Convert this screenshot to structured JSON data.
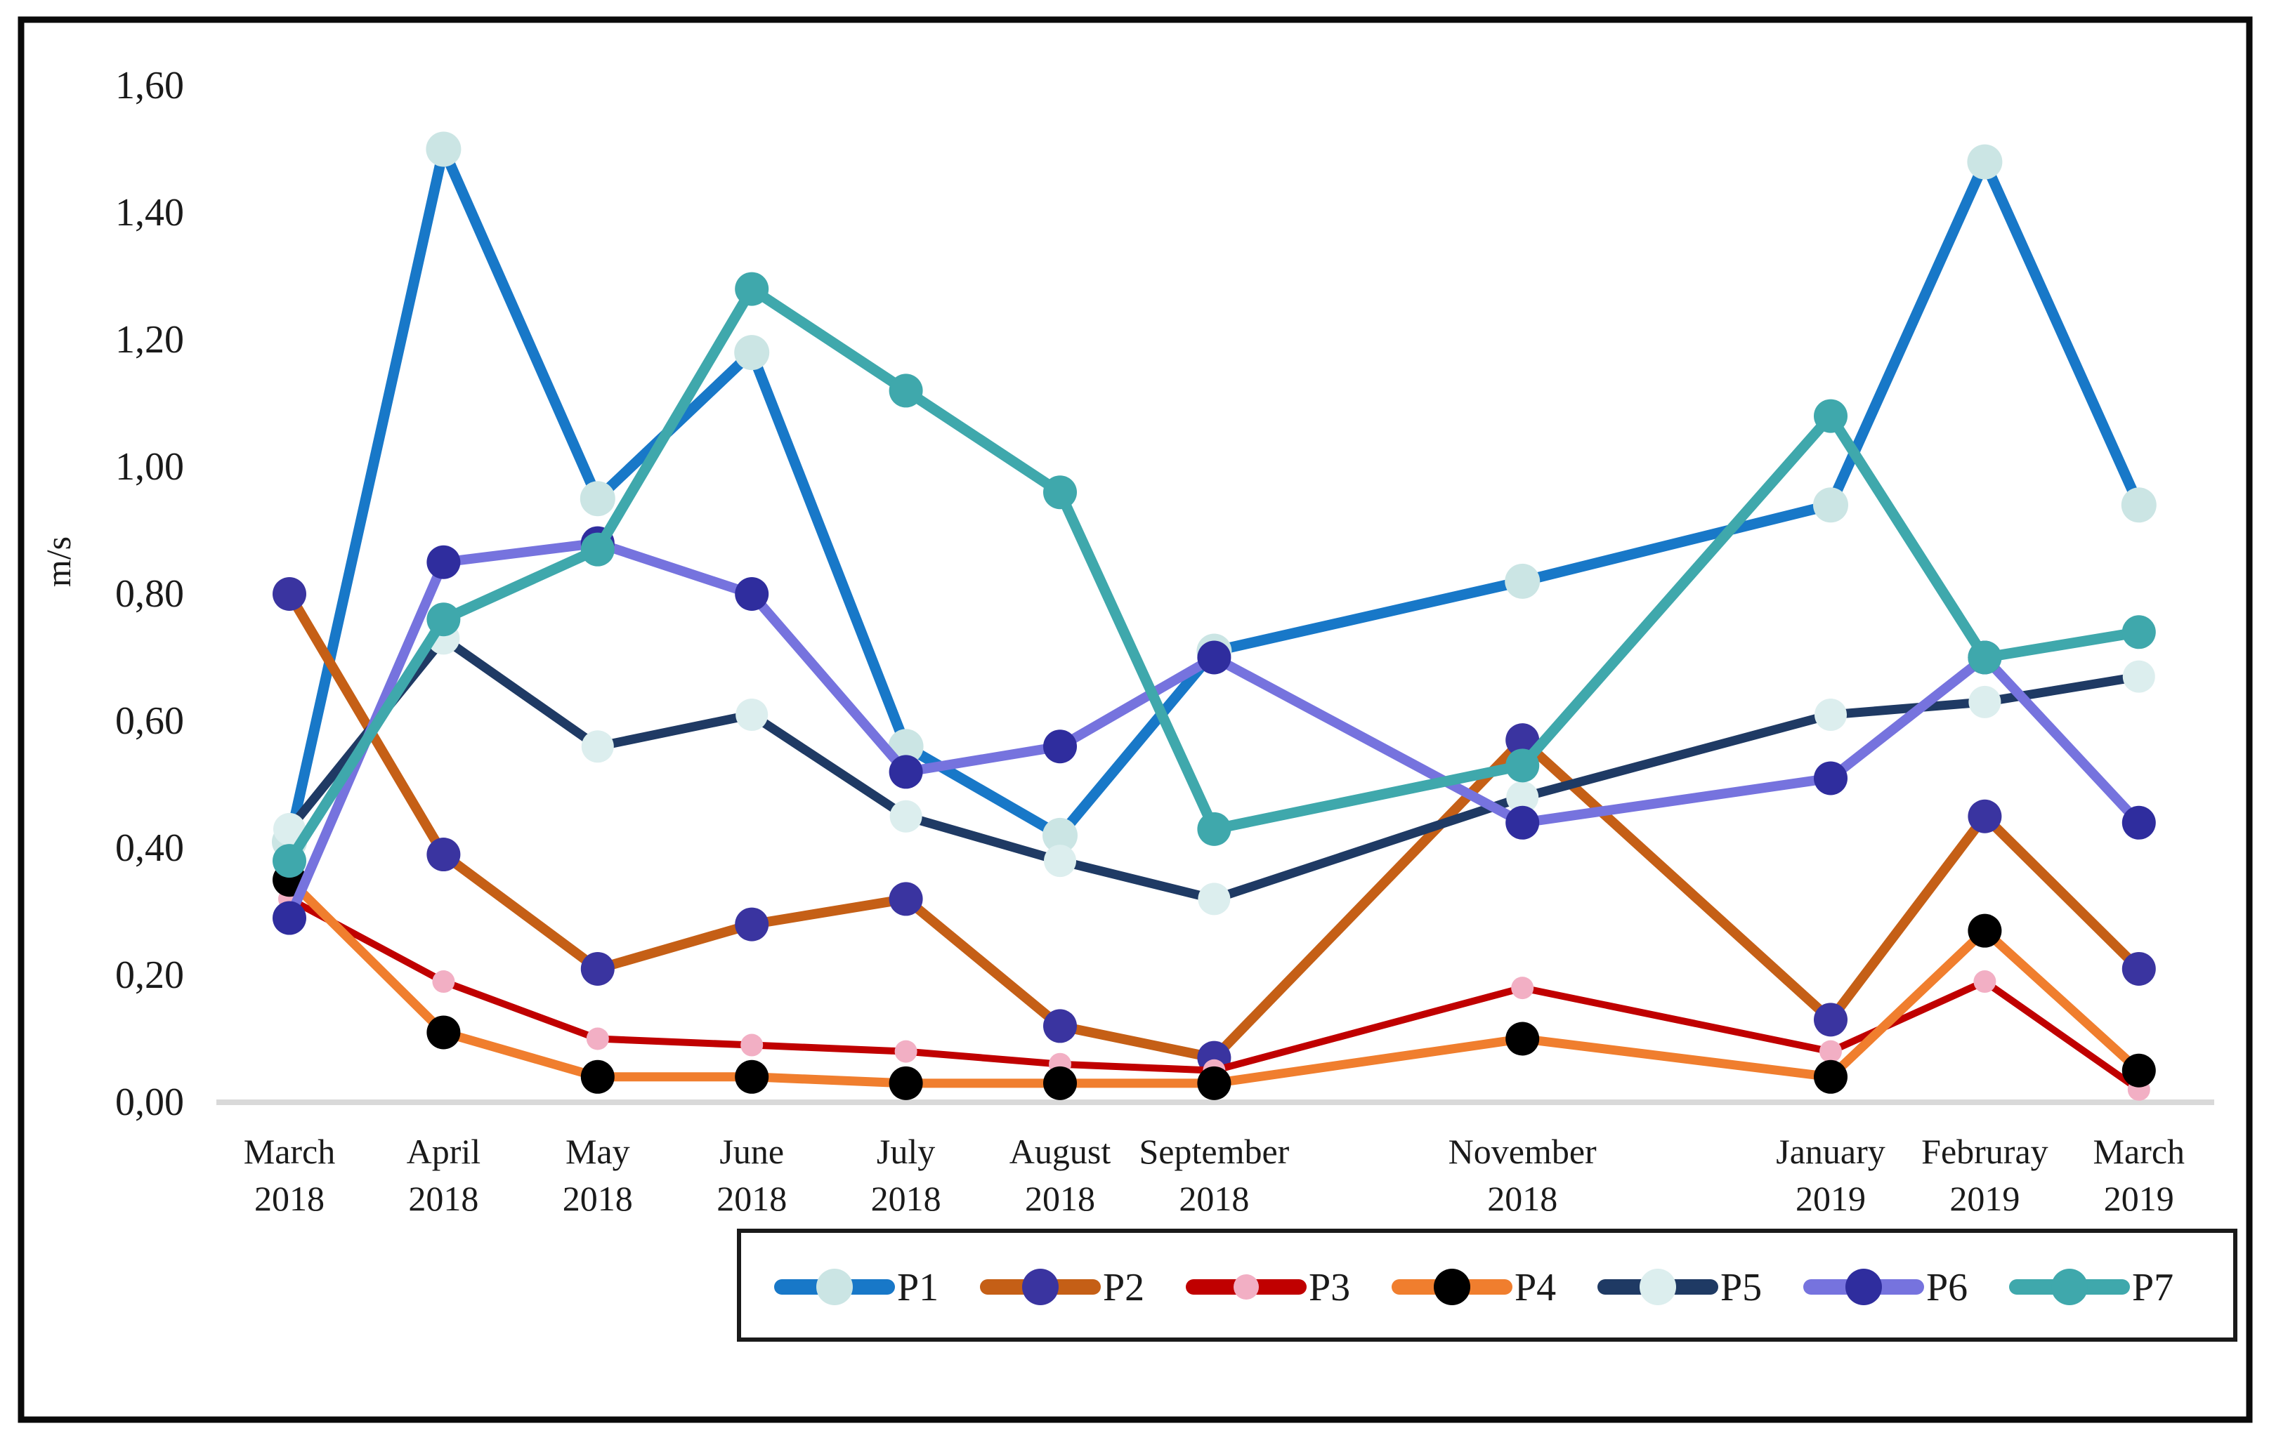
{
  "chart_data": {
    "type": "line",
    "title": "",
    "ylabel": "m/s",
    "xlabel": "",
    "ylim": [
      0,
      1.6
    ],
    "grid": "off",
    "legend_position": "bottom",
    "decimal_style": "comma",
    "ytick_values": [
      0.0,
      0.2,
      0.4,
      0.6,
      0.8,
      1.0,
      1.2,
      1.4,
      1.6
    ],
    "ytick_labels": [
      "0,00",
      "0,20",
      "0,40",
      "0,60",
      "0,80",
      "1,00",
      "1,20",
      "1,40",
      "1,60"
    ],
    "total_month_slots": 13,
    "categories": [
      {
        "line1": "March",
        "line2": "2018",
        "slot": 0
      },
      {
        "line1": "April",
        "line2": "2018",
        "slot": 1
      },
      {
        "line1": "May",
        "line2": "2018",
        "slot": 2
      },
      {
        "line1": "June",
        "line2": "2018",
        "slot": 3
      },
      {
        "line1": "July",
        "line2": "2018",
        "slot": 4
      },
      {
        "line1": "August",
        "line2": "2018",
        "slot": 5
      },
      {
        "line1": "September",
        "line2": "2018",
        "slot": 6
      },
      {
        "line1": "November",
        "line2": "2018",
        "slot": 8
      },
      {
        "line1": "January",
        "line2": "2019",
        "slot": 10
      },
      {
        "line1": "Februray",
        "line2": "2019",
        "slot": 11
      },
      {
        "line1": "March",
        "line2": "2019",
        "slot": 12
      }
    ],
    "series": [
      {
        "name": "P1",
        "line_color": "#1878C8",
        "marker_color": "#CBE5E4",
        "line_width": 15,
        "marker_radius": 25,
        "values": [
          0.41,
          1.5,
          0.95,
          1.18,
          0.56,
          0.42,
          0.71,
          0.82,
          0.94,
          1.48,
          0.94
        ]
      },
      {
        "name": "P2",
        "line_color": "#C55F16",
        "marker_color": "#3A34A0",
        "line_width": 14,
        "marker_radius": 24,
        "values": [
          0.8,
          0.39,
          0.21,
          0.28,
          0.32,
          0.12,
          0.07,
          0.57,
          0.13,
          0.45,
          0.21
        ]
      },
      {
        "name": "P3",
        "line_color": "#C00000",
        "marker_color": "#F2AFC4",
        "line_width": 10,
        "marker_radius": 16,
        "values": [
          0.32,
          0.19,
          0.1,
          0.09,
          0.08,
          0.06,
          0.05,
          0.18,
          0.08,
          0.19,
          0.02
        ]
      },
      {
        "name": "P4",
        "line_color": "#F07E2E",
        "marker_color": "#000000",
        "line_width": 13,
        "marker_radius": 24,
        "values": [
          0.35,
          0.11,
          0.04,
          0.04,
          0.03,
          0.03,
          0.03,
          0.1,
          0.04,
          0.27,
          0.05
        ]
      },
      {
        "name": "P5",
        "line_color": "#1F3A64",
        "marker_color": "#DCEEEE",
        "line_width": 13,
        "marker_radius": 23,
        "values": [
          0.43,
          0.73,
          0.56,
          0.61,
          0.45,
          0.38,
          0.32,
          0.48,
          0.61,
          0.63,
          0.67
        ]
      },
      {
        "name": "P6",
        "line_color": "#7673DE",
        "marker_color": "#2F2D9E",
        "line_width": 14,
        "marker_radius": 24,
        "values": [
          0.29,
          0.85,
          0.88,
          0.8,
          0.52,
          0.56,
          0.7,
          0.44,
          0.51,
          0.7,
          0.44
        ]
      },
      {
        "name": "P7",
        "line_color": "#3FA8AC",
        "marker_color": "#3FA8AC",
        "line_width": 15,
        "marker_radius": 24,
        "values": [
          0.38,
          0.76,
          0.87,
          1.28,
          1.12,
          0.96,
          0.43,
          0.53,
          1.08,
          0.7,
          0.74
        ]
      }
    ],
    "axis_color": "#D9D9D9",
    "frame_color": "#0a0a0a"
  }
}
